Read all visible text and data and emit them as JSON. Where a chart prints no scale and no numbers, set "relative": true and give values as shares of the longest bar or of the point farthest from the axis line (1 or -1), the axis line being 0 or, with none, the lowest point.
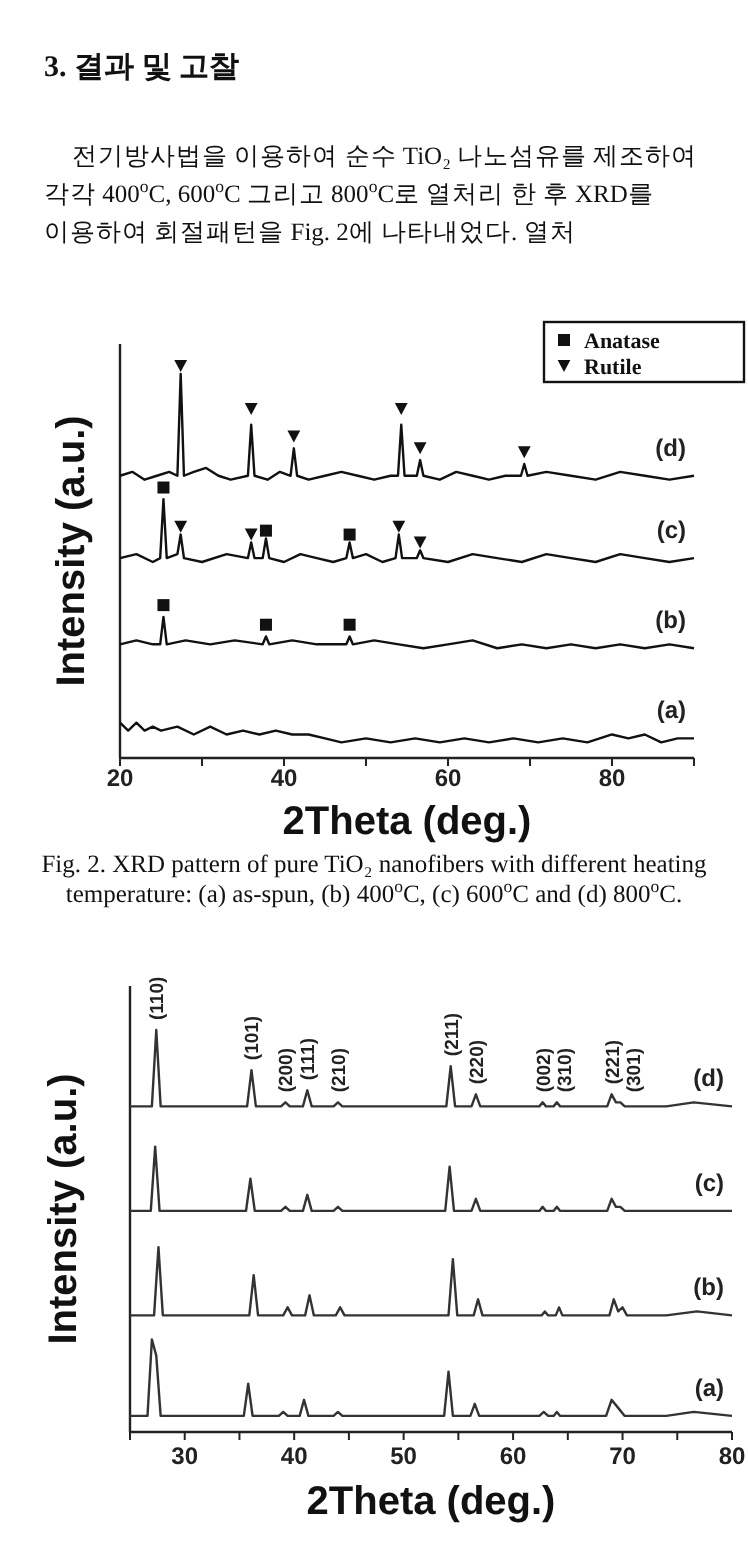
{
  "chart_data": [
    {
      "type": "line",
      "relative": true,
      "annotations": [
        "3. 결과 및 고찰",
        "전기방사법을 이용하여 순수 TiO₂ 나노섬유를 제조하여 각각 400$^{o}$C, 600$^{o}$C 그리고 800$^{o}$C로 열처리 한 후 XRD를 이용하여 회절패턴을 Fig. 2에 나타내었다. 열처",
        "Fig. 2. XRD pattern of pure TiO₂ nanofibers with different heating temperature: (a) as-spun, (b) 400$^{o}$C, (c) 600$^{o}$C and (d) 800$^{o}$C."
      ],
      "xlabel": "2Theta (deg.)",
      "ylabel": "Intensity (a.u.)",
      "xlim": [
        20,
        90
      ],
      "xticks": [
        20,
        {
          "value": 30,
          "label": null
        },
        40,
        {
          "value": 50,
          "label": null
        },
        60,
        {
          "value": 70,
          "label": null
        },
        80,
        {
          "value": 90,
          "label": null
        }
      ],
      "legend": "top right",
      "grid": false,
      "series": [
        {
          "name": "(d)",
          "color": "#111111",
          "x": [
            20,
            21.5,
            23,
            24.5,
            26,
            27.0,
            27.4,
            27.8,
            29,
            30.5,
            32,
            33.5,
            35.6,
            36,
            36.4,
            38,
            39.5,
            40.8,
            41.2,
            41.6,
            43,
            45,
            47,
            49,
            51,
            53,
            53.9,
            54.3,
            54.7,
            56.2,
            56.6,
            57,
            59,
            61,
            63,
            65,
            67,
            68.9,
            69.3,
            69.7,
            72,
            75,
            78,
            81,
            84,
            87,
            90
          ],
          "values": [
            0.72,
            0.73,
            0.71,
            0.72,
            0.73,
            0.72,
            0.98,
            0.72,
            0.73,
            0.74,
            0.72,
            0.71,
            0.72,
            0.85,
            0.72,
            0.71,
            0.73,
            0.72,
            0.79,
            0.72,
            0.71,
            0.72,
            0.73,
            0.72,
            0.71,
            0.72,
            0.72,
            0.85,
            0.72,
            0.72,
            0.76,
            0.72,
            0.71,
            0.73,
            0.72,
            0.71,
            0.72,
            0.72,
            0.75,
            0.72,
            0.73,
            0.72,
            0.71,
            0.73,
            0.72,
            0.71,
            0.72
          ]
        },
        {
          "name": "(c)",
          "color": "#111111",
          "x": [
            20,
            22,
            24,
            24.9,
            25.3,
            25.7,
            27.0,
            27.4,
            27.8,
            30,
            33,
            35.6,
            36,
            36.4,
            37.4,
            37.8,
            38.2,
            40,
            42,
            44,
            46,
            47.6,
            48,
            48.4,
            50,
            52,
            53.6,
            54,
            54.4,
            56.2,
            56.6,
            57,
            60,
            63,
            66,
            69,
            72,
            75,
            78,
            81,
            84,
            87,
            90
          ],
          "values": [
            0.51,
            0.52,
            0.5,
            0.51,
            0.66,
            0.51,
            0.52,
            0.57,
            0.51,
            0.5,
            0.52,
            0.51,
            0.55,
            0.51,
            0.51,
            0.56,
            0.51,
            0.5,
            0.52,
            0.51,
            0.5,
            0.51,
            0.55,
            0.51,
            0.52,
            0.5,
            0.51,
            0.57,
            0.51,
            0.51,
            0.53,
            0.51,
            0.5,
            0.52,
            0.51,
            0.5,
            0.52,
            0.51,
            0.5,
            0.52,
            0.51,
            0.5,
            0.51
          ]
        },
        {
          "name": "(b)",
          "color": "#111111",
          "x": [
            20,
            22,
            24,
            24.9,
            25.3,
            25.7,
            28,
            31,
            34,
            37.4,
            37.8,
            38.2,
            41,
            44,
            47.6,
            48,
            48.4,
            51,
            54,
            57,
            60,
            63,
            66,
            69,
            72,
            75,
            78,
            81,
            84,
            87,
            90
          ],
          "values": [
            0.29,
            0.3,
            0.29,
            0.29,
            0.36,
            0.29,
            0.3,
            0.29,
            0.3,
            0.29,
            0.31,
            0.29,
            0.3,
            0.29,
            0.29,
            0.31,
            0.29,
            0.3,
            0.29,
            0.28,
            0.29,
            0.3,
            0.28,
            0.29,
            0.28,
            0.29,
            0.28,
            0.29,
            0.28,
            0.29,
            0.28
          ]
        },
        {
          "name": "(a)",
          "color": "#111111",
          "x": [
            20,
            21,
            22,
            23,
            24,
            25,
            27,
            29,
            31,
            33,
            35,
            37,
            39,
            41,
            43,
            45,
            47,
            50,
            53,
            56,
            59,
            62,
            65,
            68,
            71,
            74,
            77,
            80,
            82,
            84,
            86,
            88,
            90
          ],
          "values": [
            0.09,
            0.07,
            0.09,
            0.07,
            0.08,
            0.07,
            0.08,
            0.06,
            0.08,
            0.06,
            0.07,
            0.06,
            0.07,
            0.06,
            0.06,
            0.05,
            0.04,
            0.05,
            0.04,
            0.05,
            0.04,
            0.05,
            0.04,
            0.05,
            0.04,
            0.05,
            0.04,
            0.06,
            0.05,
            0.06,
            0.04,
            0.05,
            0.05
          ]
        },
        {
          "type": "scatter",
          "name": "Anatase",
          "marker": "square",
          "color": "#111111",
          "x": [
            25.3,
            37.8,
            48,
            25.3,
            37.8,
            48
          ],
          "values": [
            0.69,
            0.58,
            0.57,
            0.39,
            0.34,
            0.34
          ]
        },
        {
          "type": "scatter",
          "name": "Rutile",
          "marker": "triangle",
          "color": "#111111",
          "x": [
            27.4,
            36,
            41.2,
            54.3,
            56.6,
            69.3,
            27.4,
            36,
            54,
            56.6
          ],
          "values": [
            1.0,
            0.89,
            0.82,
            0.89,
            0.79,
            0.78,
            0.59,
            0.57,
            0.59,
            0.55
          ]
        }
      ]
    },
    {
      "type": "line",
      "relative": true,
      "xlabel": "2Theta (deg.)",
      "ylabel": "Intensity (a.u.)",
      "xlim": [
        25,
        80
      ],
      "xticks": [
        {
          "value": 25,
          "label": null
        },
        30,
        {
          "value": 35,
          "label": null
        },
        40,
        {
          "value": 45,
          "label": null
        },
        50,
        {
          "value": 55,
          "label": null
        },
        60,
        {
          "value": 65,
          "label": null
        },
        70,
        {
          "value": 75,
          "label": null
        },
        80
      ],
      "legend": false,
      "grid": false,
      "annotations": [
        {
          "text": "(110)",
          "x": 27.4,
          "y": 1.0
        },
        {
          "text": "(101)",
          "x": 36.1,
          "y": 0.9
        },
        {
          "text": "(200)",
          "x": 39.2,
          "y": 0.82
        },
        {
          "text": "(111)",
          "x": 41.2,
          "y": 0.85
        },
        {
          "text": "(210)",
          "x": 44.0,
          "y": 0.82
        },
        {
          "text": "(211)",
          "x": 54.3,
          "y": 0.91
        },
        {
          "text": "(220)",
          "x": 56.6,
          "y": 0.84
        },
        {
          "text": "(002)",
          "x": 62.7,
          "y": 0.82
        },
        {
          "text": "(310)",
          "x": 64.0,
          "y": 0.82
        },
        {
          "text": "(221)",
          "x": 69.0,
          "y": 0.84
        },
        {
          "text": "(301)",
          "x": 69.8,
          "y": 0.82
        }
      ],
      "series": [
        {
          "name": "(d)",
          "color": "#333333",
          "x": [
            25,
            27.0,
            27.4,
            27.8,
            30,
            35.7,
            36.1,
            36.5,
            38.8,
            39.2,
            39.6,
            40.8,
            41.2,
            41.6,
            43.6,
            44.0,
            44.4,
            50,
            53.9,
            54.3,
            54.7,
            56.2,
            56.6,
            57,
            60,
            62.4,
            62.7,
            63.0,
            63.7,
            64.0,
            64.3,
            68.6,
            69.0,
            69.4,
            69.8,
            70.2,
            74,
            76.5,
            80
          ],
          "values": [
            0.81,
            0.81,
            1.0,
            0.81,
            0.81,
            0.81,
            0.9,
            0.81,
            0.81,
            0.82,
            0.81,
            0.81,
            0.85,
            0.81,
            0.81,
            0.82,
            0.81,
            0.81,
            0.81,
            0.91,
            0.81,
            0.81,
            0.84,
            0.81,
            0.81,
            0.81,
            0.82,
            0.81,
            0.81,
            0.82,
            0.81,
            0.81,
            0.84,
            0.82,
            0.82,
            0.81,
            0.81,
            0.82,
            0.81
          ]
        },
        {
          "name": "(c)",
          "color": "#333333",
          "x": [
            25,
            26.9,
            27.3,
            27.7,
            30,
            35.6,
            36.0,
            36.4,
            38.8,
            39.2,
            39.6,
            40.8,
            41.2,
            41.6,
            43.6,
            44.0,
            44.4,
            50,
            53.8,
            54.2,
            54.6,
            56.2,
            56.6,
            57,
            60,
            62.4,
            62.7,
            63.0,
            63.7,
            64.0,
            64.3,
            68.6,
            69.0,
            69.4,
            69.8,
            70.2,
            74,
            76.5,
            80
          ],
          "values": [
            0.55,
            0.55,
            0.71,
            0.55,
            0.55,
            0.55,
            0.63,
            0.55,
            0.55,
            0.56,
            0.55,
            0.55,
            0.59,
            0.55,
            0.55,
            0.56,
            0.55,
            0.55,
            0.55,
            0.66,
            0.55,
            0.55,
            0.58,
            0.55,
            0.55,
            0.55,
            0.56,
            0.55,
            0.55,
            0.56,
            0.55,
            0.55,
            0.58,
            0.56,
            0.56,
            0.55,
            0.55,
            0.55,
            0.55
          ]
        },
        {
          "name": "(b)",
          "color": "#333333",
          "x": [
            25,
            27.2,
            27.6,
            28.0,
            30,
            35.9,
            36.3,
            36.7,
            39.0,
            39.4,
            39.8,
            41.0,
            41.4,
            41.8,
            43.8,
            44.2,
            44.6,
            50,
            54.1,
            54.5,
            54.9,
            56.4,
            56.8,
            57.2,
            60,
            62.6,
            62.9,
            63.2,
            63.9,
            64.2,
            64.5,
            68.8,
            69.2,
            69.6,
            70.0,
            70.4,
            74,
            76.8,
            80
          ],
          "values": [
            0.29,
            0.29,
            0.46,
            0.29,
            0.29,
            0.29,
            0.39,
            0.29,
            0.29,
            0.31,
            0.29,
            0.29,
            0.34,
            0.29,
            0.29,
            0.31,
            0.29,
            0.29,
            0.29,
            0.43,
            0.29,
            0.29,
            0.33,
            0.29,
            0.29,
            0.29,
            0.3,
            0.29,
            0.29,
            0.31,
            0.29,
            0.29,
            0.33,
            0.3,
            0.31,
            0.29,
            0.29,
            0.3,
            0.29
          ]
        },
        {
          "name": "(a)",
          "color": "#333333",
          "x": [
            25,
            26.6,
            27.0,
            27.4,
            27.8,
            30,
            35.4,
            35.8,
            36.2,
            38.6,
            39.0,
            39.4,
            40.5,
            40.9,
            41.3,
            43.6,
            44.0,
            44.4,
            50,
            53.7,
            54.1,
            54.5,
            56.1,
            56.5,
            56.9,
            60,
            62.4,
            62.8,
            63.2,
            63.7,
            64.0,
            64.3,
            68.5,
            69.0,
            69.6,
            70.2,
            74,
            76.5,
            80
          ],
          "values": [
            0.04,
            0.04,
            0.23,
            0.19,
            0.04,
            0.04,
            0.04,
            0.12,
            0.04,
            0.04,
            0.05,
            0.04,
            0.04,
            0.08,
            0.04,
            0.04,
            0.05,
            0.04,
            0.04,
            0.04,
            0.15,
            0.04,
            0.04,
            0.07,
            0.04,
            0.04,
            0.04,
            0.05,
            0.04,
            0.04,
            0.05,
            0.04,
            0.04,
            0.08,
            0.06,
            0.04,
            0.04,
            0.05,
            0.04
          ]
        }
      ]
    }
  ]
}
